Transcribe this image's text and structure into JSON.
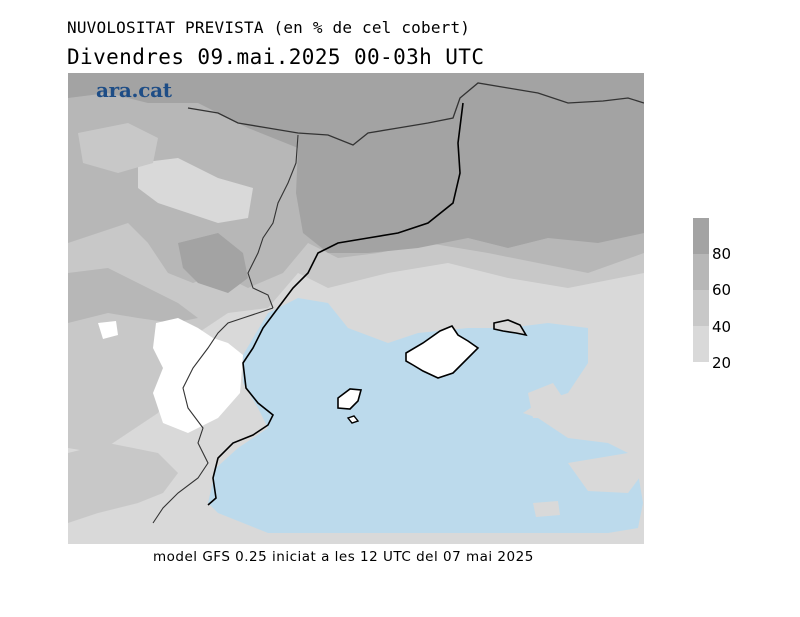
{
  "header": {
    "title": "NUVOLOSITAT PREVISTA (en % de cel cobert)",
    "subtitle": "Divendres  09.mai.2025 00-03h UTC"
  },
  "map": {
    "logo": "ara.cat",
    "colors": {
      "over_80": "#a3a3a3",
      "60_80": "#b7b7b7",
      "40_60": "#c8c8c8",
      "20_40": "#d9d9d9",
      "under_20_land": "#ffffff",
      "sea_clear": "#bcdaec",
      "coastline": "#000000",
      "border": "#444444"
    }
  },
  "legend": {
    "labels": [
      "80",
      "60",
      "40",
      "20"
    ],
    "colors": [
      "#a3a3a3",
      "#b7b7b7",
      "#c8c8c8",
      "#d9d9d9"
    ]
  },
  "footer": {
    "text": "model GFS 0.25 iniciat a les 12 UTC del 07 mai 2025"
  }
}
